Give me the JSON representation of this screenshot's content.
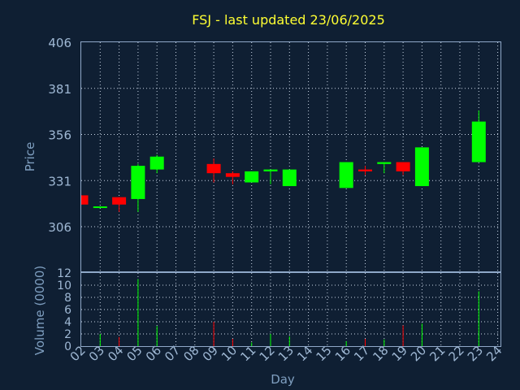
{
  "chart_data": {
    "type": "candlestick",
    "title": "FSJ - last updated 23/06/2025",
    "xlabel": "Day",
    "price_panel": {
      "ylabel": "Price",
      "ylim": [
        306,
        406
      ],
      "yticks": [
        306,
        331,
        356,
        381,
        406
      ],
      "grid": true
    },
    "volume_panel": {
      "ylabel": "Volume (0000)",
      "ylim": [
        0,
        12
      ],
      "yticks": [
        0,
        2,
        4,
        6,
        8,
        10,
        12
      ],
      "grid": true
    },
    "x_ticks": [
      "02",
      "03",
      "04",
      "05",
      "06",
      "07",
      "08",
      "09",
      "10",
      "11",
      "12",
      "13",
      "14",
      "15",
      "16",
      "17",
      "18",
      "19",
      "20",
      "21",
      "22",
      "23",
      "24"
    ],
    "colors": {
      "up": "#00ff00",
      "down": "#ff0000",
      "title": "#ffff33",
      "background": "#0f1f33"
    },
    "candles": [
      {
        "day": "02",
        "open": 323,
        "high": 323,
        "low": 318,
        "close": 318,
        "volume": 0.0
      },
      {
        "day": "03",
        "open": 317,
        "high": 317,
        "low": 316,
        "close": 317,
        "volume": 2.0
      },
      {
        "day": "04",
        "open": 322,
        "high": 322,
        "low": 314,
        "close": 318,
        "volume": 1.5
      },
      {
        "day": "05",
        "open": 321,
        "high": 340,
        "low": 314,
        "close": 339,
        "volume": 11.0
      },
      {
        "day": "06",
        "open": 337,
        "high": 345,
        "low": 335,
        "close": 344,
        "volume": 3.3
      },
      {
        "day": "09",
        "open": 340,
        "high": 343,
        "low": 330,
        "close": 335,
        "volume": 4.0
      },
      {
        "day": "10",
        "open": 335,
        "high": 336,
        "low": 329,
        "close": 333,
        "volume": 1.2
      },
      {
        "day": "11",
        "open": 330,
        "high": 336,
        "low": 330,
        "close": 336,
        "volume": 0.6
      },
      {
        "day": "12",
        "open": 336,
        "high": 337,
        "low": 329,
        "close": 337,
        "volume": 2.0
      },
      {
        "day": "13",
        "open": 328,
        "high": 337,
        "low": 328,
        "close": 337,
        "volume": 1.6
      },
      {
        "day": "16",
        "open": 327,
        "high": 341,
        "low": 327,
        "close": 341,
        "volume": 0.8
      },
      {
        "day": "17",
        "open": 337,
        "high": 339,
        "low": 334,
        "close": 336,
        "volume": 1.2
      },
      {
        "day": "18",
        "open": 340,
        "high": 341,
        "low": 335,
        "close": 341,
        "volume": 1.1
      },
      {
        "day": "19",
        "open": 341,
        "high": 341,
        "low": 334,
        "close": 336,
        "volume": 3.4
      },
      {
        "day": "20",
        "open": 328,
        "high": 349,
        "low": 328,
        "close": 349,
        "volume": 3.7
      },
      {
        "day": "23",
        "open": 341,
        "high": 369,
        "low": 341,
        "close": 363,
        "volume": 9.0
      }
    ]
  }
}
